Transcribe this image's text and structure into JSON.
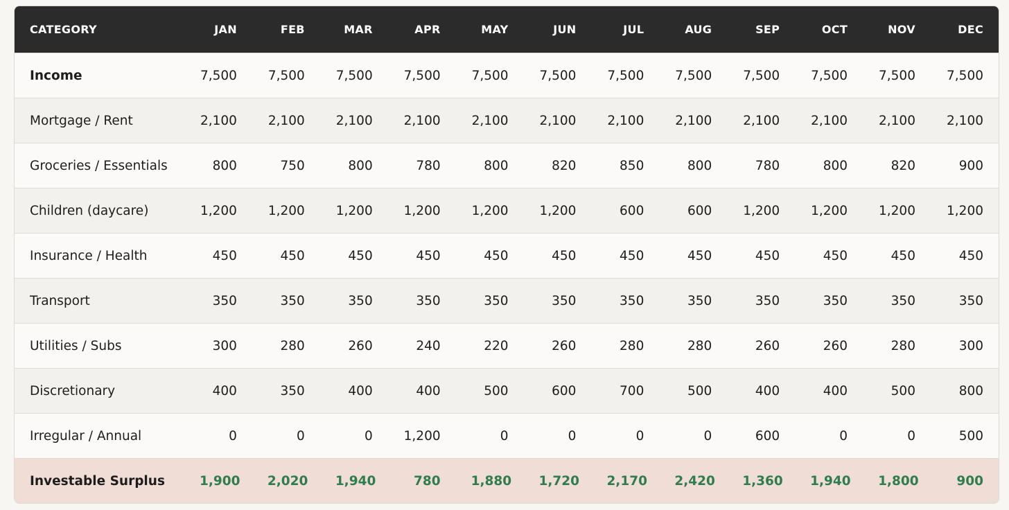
{
  "table": {
    "header": [
      "CATEGORY",
      "JAN",
      "FEB",
      "MAR",
      "APR",
      "MAY",
      "JUN",
      "JUL",
      "AUG",
      "SEP",
      "OCT",
      "NOV",
      "DEC"
    ],
    "rows": [
      [
        "Income",
        "7,500",
        "7,500",
        "7,500",
        "7,500",
        "7,500",
        "7,500",
        "7,500",
        "7,500",
        "7,500",
        "7,500",
        "7,500",
        "7,500"
      ],
      [
        "Mortgage / Rent",
        "2,100",
        "2,100",
        "2,100",
        "2,100",
        "2,100",
        "2,100",
        "2,100",
        "2,100",
        "2,100",
        "2,100",
        "2,100",
        "2,100"
      ],
      [
        "Groceries / Essentials",
        "800",
        "750",
        "800",
        "780",
        "800",
        "820",
        "850",
        "800",
        "780",
        "800",
        "820",
        "900"
      ],
      [
        "Children (daycare)",
        "1,200",
        "1,200",
        "1,200",
        "1,200",
        "1,200",
        "1,200",
        "600",
        "600",
        "1,200",
        "1,200",
        "1,200",
        "1,200"
      ],
      [
        "Insurance / Health",
        "450",
        "450",
        "450",
        "450",
        "450",
        "450",
        "450",
        "450",
        "450",
        "450",
        "450",
        "450"
      ],
      [
        "Transport",
        "350",
        "350",
        "350",
        "350",
        "350",
        "350",
        "350",
        "350",
        "350",
        "350",
        "350",
        "350"
      ],
      [
        "Utilities / Subs",
        "300",
        "280",
        "260",
        "240",
        "220",
        "260",
        "280",
        "280",
        "260",
        "260",
        "280",
        "300"
      ],
      [
        "Discretionary",
        "400",
        "350",
        "400",
        "400",
        "500",
        "600",
        "700",
        "500",
        "400",
        "400",
        "500",
        "800"
      ],
      [
        "Irregular / Annual",
        "0",
        "0",
        "0",
        "1,200",
        "0",
        "0",
        "0",
        "0",
        "600",
        "0",
        "0",
        "500"
      ],
      [
        "Investable Surplus",
        "1,900",
        "2,020",
        "1,940",
        "780",
        "1,880",
        "1,720",
        "2,170",
        "2,420",
        "1,360",
        "1,940",
        "1,800",
        "900"
      ]
    ]
  }
}
